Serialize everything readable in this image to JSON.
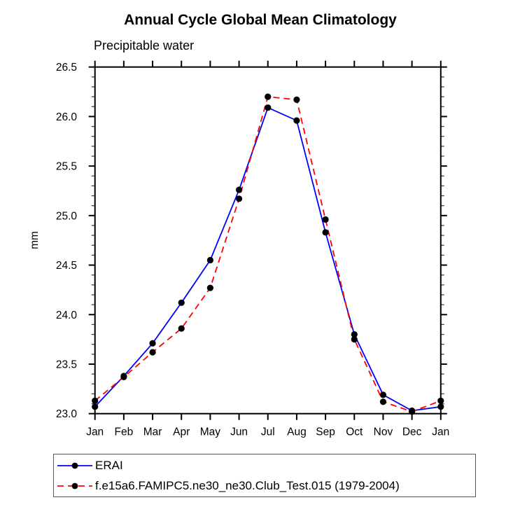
{
  "header": {
    "title": "Annual Cycle Global Mean Climatology",
    "subtitle": "Precipitable water"
  },
  "chart_data": {
    "type": "line",
    "title": "Annual Cycle Global Mean Climatology",
    "subtitle": "Precipitable water",
    "ylabel": "mm",
    "xlabel": "",
    "ylim": [
      23.0,
      26.5
    ],
    "ytick_step": 0.5,
    "yminor_step": 0.1,
    "ytick_labels": [
      "23.0",
      "23.5",
      "24.0",
      "24.5",
      "25.0",
      "25.5",
      "26.0",
      "26.5"
    ],
    "grid": false,
    "legend_position": "bottom-left",
    "categories": [
      "Jan",
      "Feb",
      "Mar",
      "Apr",
      "May",
      "Jun",
      "Jul",
      "Aug",
      "Sep",
      "Oct",
      "Nov",
      "Dec",
      "Jan"
    ],
    "series": [
      {
        "name": "ERAI",
        "color": "#0000ff",
        "line_style": "solid",
        "marker": "circle",
        "marker_color": "#000000",
        "values": [
          23.07,
          23.38,
          23.71,
          24.12,
          24.55,
          25.26,
          26.09,
          25.96,
          24.83,
          23.8,
          23.19,
          23.03,
          23.07
        ]
      },
      {
        "name": "f.e15a6.FAMIPC5.ne30_ne30.Club_Test.015 (1979-2004)",
        "color": "#ff0000",
        "line_style": "dashed",
        "marker": "circle",
        "marker_color": "#000000",
        "values": [
          23.13,
          23.37,
          23.62,
          23.86,
          24.27,
          25.17,
          26.2,
          26.17,
          24.96,
          23.75,
          23.12,
          23.02,
          23.13
        ]
      }
    ]
  }
}
